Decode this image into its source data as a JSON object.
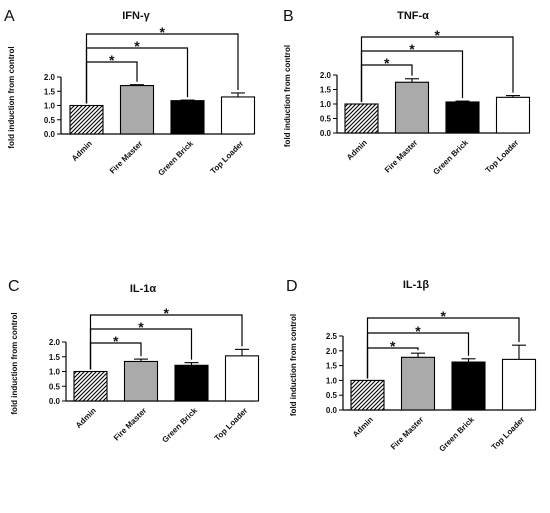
{
  "chart_data": [
    {
      "panel": "A",
      "type": "bar",
      "title": "IFN-γ",
      "ylabel": "fold induction from control",
      "categories": [
        "Admin",
        "Fire Master",
        "Green Brick",
        "Top Loader"
      ],
      "values": [
        1.0,
        1.7,
        1.17,
        1.3
      ],
      "errors": [
        0,
        0.03,
        0.02,
        0.14
      ],
      "ylim": [
        0,
        2.0
      ],
      "yticks": [
        "0.0",
        "0.5",
        "1.0",
        "1.5",
        "2.0"
      ],
      "fills": [
        "hatched",
        "#aaaaaa",
        "#000000",
        "#ffffff"
      ],
      "significance": [
        {
          "from": "Admin",
          "to": "Fire Master",
          "label": "*"
        },
        {
          "from": "Admin",
          "to": "Green Brick",
          "label": "*"
        },
        {
          "from": "Admin",
          "to": "Top Loader",
          "label": "*"
        }
      ]
    },
    {
      "panel": "B",
      "type": "bar",
      "title": "TNF-α",
      "ylabel": "fold induction from control",
      "categories": [
        "Admin",
        "Fire Master",
        "Green Brick",
        "Top Loader"
      ],
      "values": [
        1.0,
        1.75,
        1.07,
        1.23
      ],
      "errors": [
        0,
        0.12,
        0.03,
        0.06
      ],
      "ylim": [
        0,
        2.0
      ],
      "yticks": [
        "0.0",
        "0.5",
        "1.0",
        "1.5",
        "2.0"
      ],
      "fills": [
        "hatched",
        "#aaaaaa",
        "#000000",
        "#ffffff"
      ],
      "significance": [
        {
          "from": "Admin",
          "to": "Fire Master",
          "label": "*"
        },
        {
          "from": "Admin",
          "to": "Green Brick",
          "label": "*"
        },
        {
          "from": "Admin",
          "to": "Top Loader",
          "label": "*"
        }
      ]
    },
    {
      "panel": "C",
      "type": "bar",
      "title": "IL-1α",
      "ylabel": "fold induction from control",
      "categories": [
        "Admin",
        "Fire Master",
        "Green Brick",
        "Top Loader"
      ],
      "values": [
        1.0,
        1.34,
        1.21,
        1.53
      ],
      "errors": [
        0,
        0.08,
        0.09,
        0.22
      ],
      "ylim": [
        0,
        2.0
      ],
      "yticks": [
        "0.0",
        "0.5",
        "1.0",
        "1.5",
        "2.0"
      ],
      "fills": [
        "hatched",
        "#aaaaaa",
        "#000000",
        "#ffffff"
      ],
      "significance": [
        {
          "from": "Admin",
          "to": "Fire Master",
          "label": "*"
        },
        {
          "from": "Admin",
          "to": "Green Brick",
          "label": "*"
        },
        {
          "from": "Admin",
          "to": "Top Loader",
          "label": "*"
        }
      ]
    },
    {
      "panel": "D",
      "type": "bar",
      "title": "IL-1β",
      "ylabel": "fold induction from control",
      "categories": [
        "Admin",
        "Fire Master",
        "Green Brick",
        "Top Loader"
      ],
      "values": [
        1.0,
        1.78,
        1.62,
        1.71
      ],
      "errors": [
        0,
        0.14,
        0.11,
        0.48
      ],
      "ylim": [
        0,
        2.5
      ],
      "yticks": [
        "0.0",
        "0.5",
        "1.0",
        "1.5",
        "2.0",
        "2.5"
      ],
      "fills": [
        "hatched",
        "#aaaaaa",
        "#000000",
        "#ffffff"
      ],
      "significance": [
        {
          "from": "Admin",
          "to": "Fire Master",
          "label": "*"
        },
        {
          "from": "Admin",
          "to": "Green Brick",
          "label": "*"
        },
        {
          "from": "Admin",
          "to": "Top Loader",
          "label": "*"
        }
      ]
    }
  ]
}
